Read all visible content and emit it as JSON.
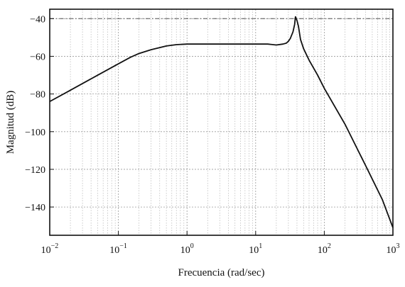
{
  "chart_data": {
    "type": "line",
    "title": "",
    "xlabel": "Frecuencia (rad/sec)",
    "ylabel": "Magnitud (dB)",
    "x_scale": "log",
    "xlim": [
      0.01,
      1000
    ],
    "ylim": [
      -155,
      -35
    ],
    "x_ticks": [
      0.01,
      0.1,
      1,
      10,
      100,
      1000
    ],
    "x_tick_labels": [
      {
        "base": "10",
        "exp": "−2"
      },
      {
        "base": "10",
        "exp": "−1"
      },
      {
        "base": "10",
        "exp": "0"
      },
      {
        "base": "10",
        "exp": "1"
      },
      {
        "base": "10",
        "exp": "2"
      },
      {
        "base": "10",
        "exp": "3"
      }
    ],
    "y_ticks": [
      -40,
      -60,
      -80,
      -100,
      -120,
      -140
    ],
    "y_tick_labels": [
      "−40",
      "−60",
      "−80",
      "−100",
      "−120",
      "−140"
    ],
    "grid": true,
    "reference_line_y": -40,
    "series": [
      {
        "color": "#111111",
        "x": [
          0.01,
          0.02,
          0.05,
          0.1,
          0.15,
          0.2,
          0.3,
          0.5,
          0.7,
          1,
          2,
          5,
          10,
          15,
          20,
          25,
          28,
          30,
          32,
          35,
          37,
          38,
          40,
          42,
          45,
          50,
          60,
          80,
          100,
          200,
          400,
          700,
          1000
        ],
        "y": [
          -84,
          -78,
          -70,
          -64,
          -60.5,
          -58.5,
          -56.5,
          -54.5,
          -53.8,
          -53.5,
          -53.5,
          -53.5,
          -53.5,
          -53.5,
          -54,
          -53.5,
          -53,
          -52,
          -50.5,
          -47,
          -43,
          -39,
          -41,
          -44,
          -51,
          -56,
          -62,
          -70,
          -77,
          -96,
          -118,
          -136,
          -151
        ]
      }
    ]
  }
}
